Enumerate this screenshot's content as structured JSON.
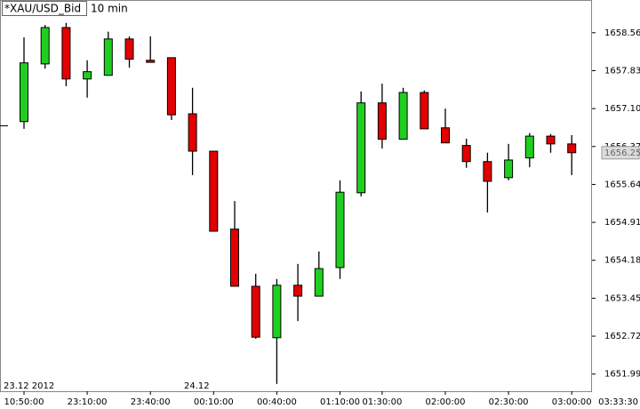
{
  "chart_data": {
    "type": "candlestick",
    "title": "*XAU/USD_Bid",
    "subtitle": "10 min",
    "categories": [
      "10:50:00",
      null,
      null,
      "23:10:00",
      null,
      null,
      "23:40:00",
      null,
      null,
      "00:10:00",
      null,
      null,
      "00:40:00",
      null,
      null,
      "01:10:00",
      null,
      "01:30:00",
      null,
      null,
      "02:00:00",
      null,
      null,
      "02:30:00",
      null,
      null,
      "03:00:00"
    ],
    "x_end_label": "03:33:30",
    "date_labels": [
      "23.12 2012",
      "24.12"
    ],
    "open": [
      1656.85,
      1657.96,
      1658.66,
      1657.67,
      1657.74,
      1658.44,
      1658.03,
      1658.08,
      1657.0,
      1656.28,
      1654.78,
      1653.68,
      1652.69,
      1653.7,
      1653.49,
      1654.04,
      1655.48,
      1657.21,
      1656.51,
      1657.41,
      1656.73,
      1656.39,
      1656.08,
      1655.77,
      1656.15,
      1656.57,
      1656.42
    ],
    "high": [
      1658.47,
      1658.71,
      1658.75,
      1658.03,
      1658.58,
      1658.49,
      1658.49,
      1658.08,
      1657.5,
      1656.28,
      1655.32,
      1653.92,
      1653.82,
      1654.11,
      1654.35,
      1655.72,
      1657.43,
      1657.58,
      1657.5,
      1657.45,
      1657.1,
      1656.52,
      1656.25,
      1656.42,
      1656.63,
      1656.61,
      1656.59
    ],
    "low": [
      1656.71,
      1657.87,
      1657.53,
      1657.31,
      1657.74,
      1657.89,
      1657.99,
      1656.88,
      1655.82,
      1654.74,
      1653.68,
      1652.67,
      1651.8,
      1653.01,
      1653.49,
      1653.82,
      1655.41,
      1656.33,
      1656.51,
      1656.71,
      1656.44,
      1655.96,
      1655.1,
      1655.72,
      1655.97,
      1656.25,
      1655.82
    ],
    "close": [
      1657.98,
      1658.66,
      1657.67,
      1657.81,
      1658.44,
      1658.05,
      1657.99,
      1656.98,
      1656.28,
      1654.74,
      1653.68,
      1652.7,
      1653.7,
      1653.49,
      1654.02,
      1655.49,
      1657.21,
      1656.51,
      1657.41,
      1656.71,
      1656.44,
      1656.08,
      1655.7,
      1656.11,
      1656.57,
      1656.42,
      1656.25
    ],
    "up_color": "#1fcf1f",
    "down_color": "#e30000",
    "current_price": 1656.25,
    "ylim": [
      1651.66,
      1659.19
    ],
    "yticks": [
      1658.56,
      1657.83,
      {
        "value": 1657.1,
        "label": "1657.10"
      },
      1656.37,
      1655.64,
      1654.91,
      1654.18,
      1653.45,
      1652.72,
      1651.99
    ]
  }
}
